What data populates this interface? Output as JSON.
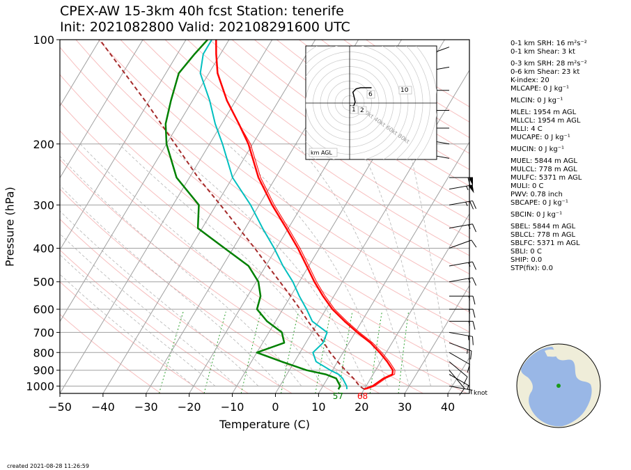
{
  "header": {
    "title_line1": "CPEX-AW 15-3km  40h fcst  Station: tenerife",
    "title_line2": "Init: 2021082800  Valid: 202108291600 UTC"
  },
  "axes": {
    "ylabel": "Pressure (hPa)",
    "xlabel": "Temperature (C)",
    "wind_unit": "knot"
  },
  "indices": [
    "0-1 km SRH: 16 m²s⁻²",
    "0-1 km Shear: 3 kt",
    "0-3 km SRH: 28 m²s⁻²",
    "0-6 km Shear: 23 kt",
    "K-index: 20",
    "MLCAPE: 0 J kg⁻¹",
    "MLCIN: 0 J kg⁻¹",
    "MLEL: 1954 m AGL",
    "MLLCL: 1954 m AGL",
    "MLLI: 4 C",
    "MUCAPE: 0 J kg⁻¹",
    "MUCIN: 0 J kg⁻¹",
    "MUEL: 5844 m AGL",
    "MULCL: 778 m AGL",
    "MULFC: 5371 m AGL",
    "MULI: 0 C",
    "PWV: 0.78 inch",
    "SBCAPE: 0 J kg⁻¹",
    "SBCIN: 0 J kg⁻¹",
    "SBEL: 5844 m AGL",
    "SBLCL: 778 m AGL",
    "SBLFC: 5371 m AGL",
    "SBLI: 0 C",
    "SHIP: 0.0",
    "STP(fix): 0.0"
  ],
  "footer": {
    "created": "created 2021-08-28 11:26:59"
  },
  "hodograph": {
    "box_label": "km AGL",
    "ring_labels": [
      "20kt",
      "40kt",
      "60kt",
      "80kt"
    ],
    "height_labels": [
      "1",
      "2",
      "6",
      "10"
    ],
    "points": [
      [
        0.5,
        -2
      ],
      [
        2,
        -3
      ],
      [
        4,
        -2
      ],
      [
        5,
        1
      ],
      [
        4,
        6
      ],
      [
        3,
        10
      ],
      [
        6,
        13
      ],
      [
        10,
        14
      ],
      [
        16,
        14
      ],
      [
        20,
        14
      ]
    ]
  },
  "colors": {
    "temperature": "#ff0000",
    "dewpoint": "#008000",
    "virtual_temp": "#00bfbf",
    "parcel": "#a52a2a",
    "dry_adiabat": "#f4a3a3",
    "moist_adiabat": "#b4b4b4",
    "mixing_ratio": "#2ca02c",
    "isotherm": "#a0a0a0"
  },
  "chart_data": {
    "type": "skew-t",
    "xlabel": "Temperature (C)",
    "ylabel": "Pressure (hPa)",
    "xlim": [
      -50,
      45
    ],
    "ylim": [
      1050,
      100
    ],
    "xticks": [
      -50,
      -40,
      -30,
      -20,
      -10,
      0,
      10,
      20,
      30,
      40
    ],
    "yticks": [
      100,
      200,
      300,
      400,
      500,
      600,
      700,
      800,
      900,
      1000
    ],
    "surface_labels": {
      "dewpoint_F": "57",
      "temperature_F": "68"
    },
    "temperature": [
      [
        1021,
        20
      ],
      [
        1000,
        21.5
      ],
      [
        950,
        23
      ],
      [
        925,
        24.5
      ],
      [
        900,
        24
      ],
      [
        850,
        21.5
      ],
      [
        800,
        18.5
      ],
      [
        750,
        15
      ],
      [
        700,
        10.5
      ],
      [
        650,
        6
      ],
      [
        600,
        1.5
      ],
      [
        550,
        -2.5
      ],
      [
        500,
        -6.5
      ],
      [
        450,
        -10.5
      ],
      [
        400,
        -15
      ],
      [
        350,
        -20.5
      ],
      [
        300,
        -27
      ],
      [
        250,
        -34
      ],
      [
        200,
        -41
      ],
      [
        175,
        -46
      ],
      [
        150,
        -52
      ],
      [
        125,
        -58
      ],
      [
        110,
        -61
      ],
      [
        100,
        -63
      ]
    ],
    "virtual_temperature": [
      [
        1021,
        20.5
      ],
      [
        1000,
        22
      ],
      [
        950,
        23.5
      ],
      [
        925,
        25
      ],
      [
        900,
        24.5
      ],
      [
        850,
        22
      ],
      [
        800,
        19
      ],
      [
        750,
        15.5
      ],
      [
        700,
        11
      ],
      [
        650,
        6.5
      ],
      [
        600,
        2
      ],
      [
        550,
        -2
      ],
      [
        500,
        -6
      ],
      [
        450,
        -10
      ],
      [
        400,
        -14.5
      ],
      [
        350,
        -20
      ],
      [
        300,
        -26.5
      ],
      [
        250,
        -33.5
      ],
      [
        200,
        -40.5
      ],
      [
        175,
        -46
      ],
      [
        150,
        -52
      ],
      [
        125,
        -58
      ],
      [
        110,
        -61
      ],
      [
        100,
        -63
      ]
    ],
    "dewpoint": [
      [
        1021,
        14
      ],
      [
        1000,
        14
      ],
      [
        950,
        12
      ],
      [
        925,
        9
      ],
      [
        900,
        4
      ],
      [
        850,
        -3
      ],
      [
        800,
        -10
      ],
      [
        750,
        -5
      ],
      [
        700,
        -7
      ],
      [
        650,
        -12
      ],
      [
        600,
        -16
      ],
      [
        550,
        -17
      ],
      [
        500,
        -19.5
      ],
      [
        450,
        -24
      ],
      [
        400,
        -32
      ],
      [
        350,
        -41
      ],
      [
        300,
        -44
      ],
      [
        250,
        -53
      ],
      [
        200,
        -60
      ],
      [
        175,
        -63
      ],
      [
        150,
        -65
      ],
      [
        125,
        -67
      ],
      [
        110,
        -66
      ],
      [
        100,
        -65
      ]
    ],
    "dewpoint_cyan": [
      [
        1021,
        16
      ],
      [
        1000,
        15.5
      ],
      [
        950,
        13.5
      ],
      [
        925,
        12
      ],
      [
        900,
        9.5
      ],
      [
        850,
        5
      ],
      [
        800,
        3
      ],
      [
        750,
        4
      ],
      [
        700,
        3.5
      ],
      [
        650,
        -1.5
      ],
      [
        600,
        -4.5
      ],
      [
        550,
        -8
      ],
      [
        500,
        -11.5
      ],
      [
        450,
        -16
      ],
      [
        400,
        -20.5
      ],
      [
        350,
        -26
      ],
      [
        300,
        -32
      ],
      [
        250,
        -40
      ],
      [
        200,
        -47
      ],
      [
        175,
        -51.5
      ],
      [
        150,
        -56
      ],
      [
        125,
        -62
      ],
      [
        110,
        -64
      ],
      [
        100,
        -64
      ]
    ],
    "parcel": [
      [
        1021,
        20
      ],
      [
        1000,
        18.5
      ],
      [
        950,
        16
      ],
      [
        900,
        13
      ],
      [
        850,
        10
      ],
      [
        800,
        7
      ],
      [
        750,
        4.2
      ],
      [
        700,
        1
      ],
      [
        650,
        -2.5
      ],
      [
        600,
        -6
      ],
      [
        550,
        -10
      ],
      [
        500,
        -14.5
      ],
      [
        450,
        -19.5
      ],
      [
        400,
        -25
      ],
      [
        350,
        -31.5
      ],
      [
        300,
        -39
      ],
      [
        250,
        -48
      ],
      [
        200,
        -58
      ],
      [
        150,
        -71
      ],
      [
        100,
        -90
      ]
    ],
    "wind_barbs": [
      [
        1000,
        100,
        4
      ],
      [
        925,
        120,
        6
      ],
      [
        900,
        140,
        8
      ],
      [
        850,
        130,
        10
      ],
      [
        800,
        120,
        12
      ],
      [
        750,
        110,
        13
      ],
      [
        700,
        100,
        14
      ],
      [
        650,
        90,
        14
      ],
      [
        600,
        90,
        15
      ],
      [
        550,
        90,
        16
      ],
      [
        500,
        80,
        15
      ],
      [
        450,
        80,
        14
      ],
      [
        400,
        70,
        12
      ],
      [
        350,
        80,
        15
      ],
      [
        300,
        80,
        25
      ],
      [
        270,
        80,
        55
      ],
      [
        250,
        90,
        60
      ],
      [
        220,
        280,
        30
      ],
      [
        200,
        280,
        35
      ],
      [
        180,
        270,
        30
      ],
      [
        160,
        270,
        30
      ],
      [
        140,
        270,
        25
      ],
      [
        120,
        260,
        20
      ],
      [
        105,
        250,
        15
      ]
    ]
  }
}
